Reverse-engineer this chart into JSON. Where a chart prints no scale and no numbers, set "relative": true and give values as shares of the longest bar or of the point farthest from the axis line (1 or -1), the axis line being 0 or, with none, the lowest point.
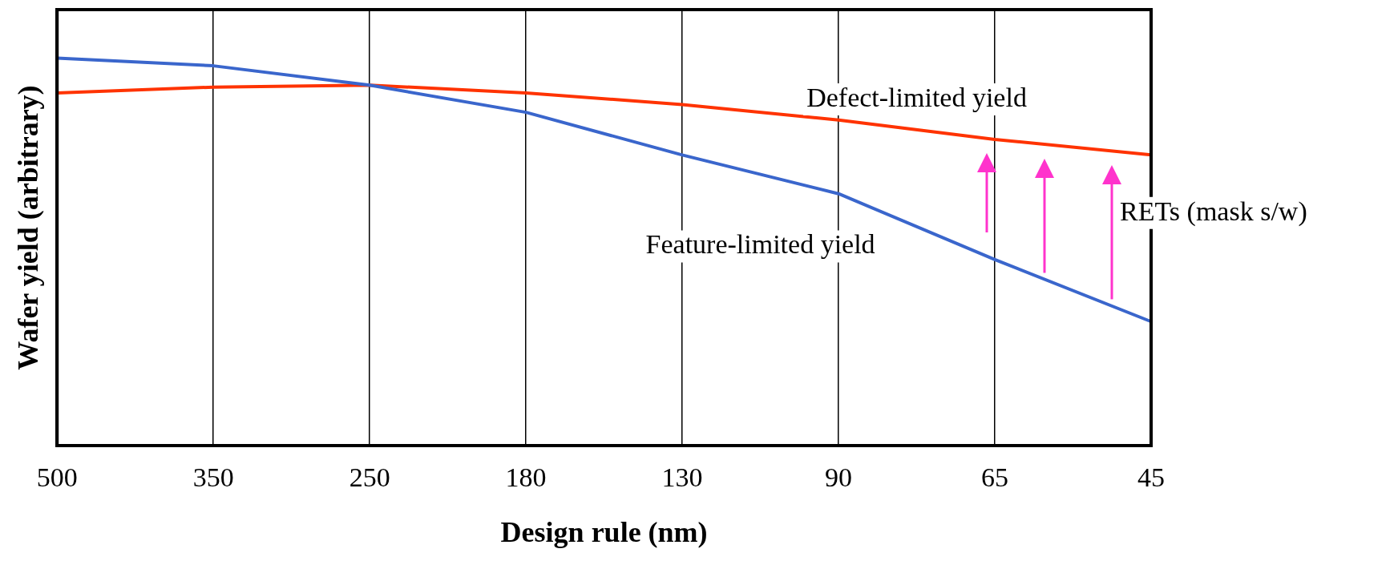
{
  "chart_data": {
    "type": "line",
    "relative": true,
    "xlabel": "Design rule (nm)",
    "ylabel": "Wafer yield (arbitrary)",
    "categories": [
      "500",
      "350",
      "250",
      "180",
      "130",
      "90",
      "65",
      "45"
    ],
    "series": [
      {
        "name": "Feature-limited yield",
        "color": "#3a66cc",
        "values": [
          1,
          0.98,
          0.93,
          0.86,
          0.75,
          0.65,
          0.48,
          0.32
        ]
      },
      {
        "name": "Defect-limited yield",
        "color": "#ff3300",
        "values": [
          0.91,
          0.925,
          0.93,
          0.91,
          0.88,
          0.84,
          0.79,
          0.75
        ]
      }
    ],
    "annotations": [
      "RETs (mask s/w)"
    ],
    "grid": "x",
    "legend": false,
    "marker": "none",
    "line_style": "solid"
  }
}
